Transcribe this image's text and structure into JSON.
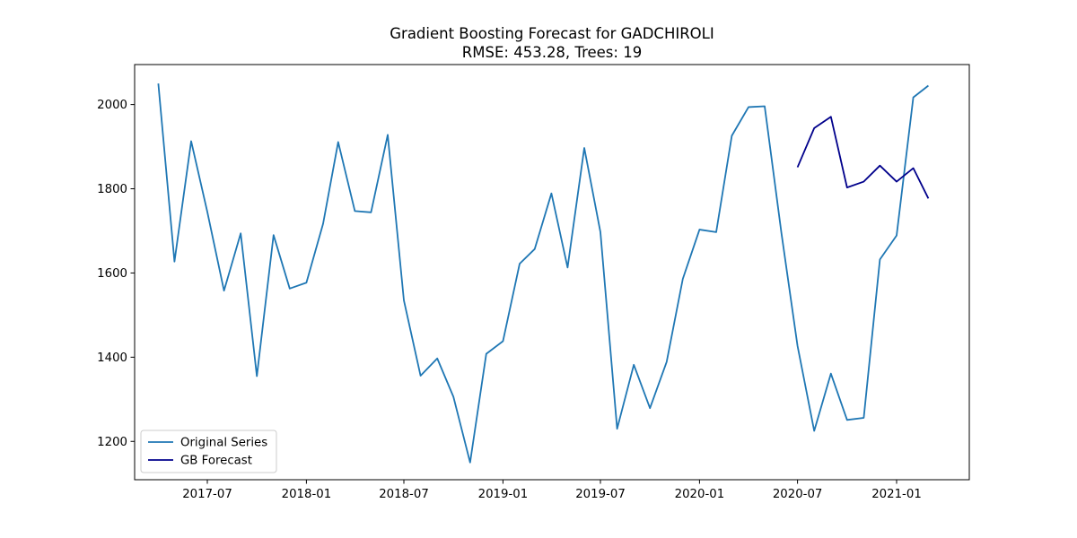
{
  "chart_data": {
    "type": "line",
    "title": "Gradient Boosting Forecast for GADCHIROLI",
    "subtitle": "RMSE: 453.28, Trees: 19",
    "xlabel": "",
    "ylabel": "",
    "xlim": [
      "2017-02-16",
      "2021-05-16"
    ],
    "ylim": [
      1109,
      2095
    ],
    "x_ticks": [
      "2017-07",
      "2018-01",
      "2018-07",
      "2019-01",
      "2019-07",
      "2020-01",
      "2020-07",
      "2021-01"
    ],
    "y_ticks": [
      1200,
      1400,
      1600,
      1800,
      2000
    ],
    "grid": false,
    "legend": "lower-left",
    "series": [
      {
        "name": "Original Series",
        "color": "#1f77b4",
        "x": [
          "2017-04-01",
          "2017-05-01",
          "2017-06-01",
          "2017-07-01",
          "2017-08-01",
          "2017-09-01",
          "2017-10-01",
          "2017-11-01",
          "2017-12-01",
          "2018-01-01",
          "2018-02-01",
          "2018-03-01",
          "2018-04-01",
          "2018-05-01",
          "2018-06-01",
          "2018-07-01",
          "2018-08-01",
          "2018-09-01",
          "2018-10-01",
          "2018-11-01",
          "2018-12-01",
          "2019-01-01",
          "2019-02-01",
          "2019-03-01",
          "2019-04-01",
          "2019-05-01",
          "2019-06-01",
          "2019-07-01",
          "2019-08-01",
          "2019-09-01",
          "2019-10-01",
          "2019-11-01",
          "2019-12-01",
          "2020-01-01",
          "2020-02-01",
          "2020-03-01",
          "2020-04-01",
          "2020-05-01",
          "2020-06-01",
          "2020-07-01",
          "2020-08-01",
          "2020-09-01",
          "2020-10-01",
          "2020-11-01",
          "2020-12-01",
          "2021-01-01",
          "2021-02-01",
          "2021-03-01"
        ],
        "values": [
          2050,
          1627,
          1913,
          1745,
          1558,
          1694,
          1355,
          1690,
          1563,
          1577,
          1717,
          1911,
          1747,
          1744,
          1928,
          1535,
          1356,
          1397,
          1306,
          1150,
          1408,
          1438,
          1622,
          1657,
          1789,
          1613,
          1897,
          1697,
          1230,
          1382,
          1279,
          1389,
          1586,
          1703,
          1697,
          1926,
          1994,
          1996,
          1696,
          1427,
          1225,
          1361,
          1251,
          1256,
          1632,
          1689,
          2017,
          2045
        ]
      },
      {
        "name": "GB Forecast",
        "color": "#00008b",
        "x": [
          "2020-07-01",
          "2020-08-01",
          "2020-09-01",
          "2020-10-01",
          "2020-11-01",
          "2020-12-01",
          "2021-01-01",
          "2021-02-01",
          "2021-03-01"
        ],
        "values": [
          1851,
          1944,
          1971,
          1803,
          1817,
          1855,
          1817,
          1849,
          1777
        ]
      }
    ]
  }
}
